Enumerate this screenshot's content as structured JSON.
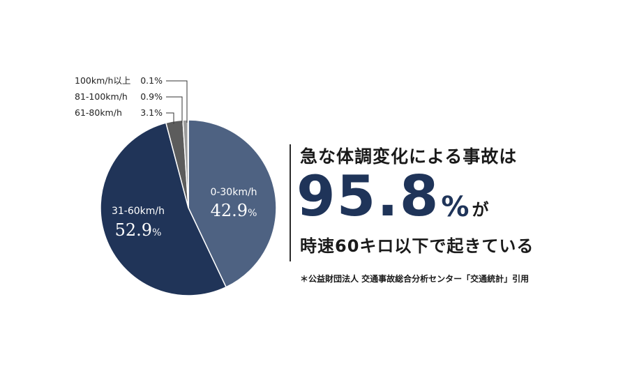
{
  "chart_data": {
    "type": "pie",
    "slices": [
      {
        "label": "0-30km/h",
        "value": 42.9,
        "value_text": "42.9",
        "pct_sign": "%",
        "color": "#4e6282",
        "label_position": "inside"
      },
      {
        "label": "31-60km/h",
        "value": 52.9,
        "value_text": "52.9",
        "pct_sign": "%",
        "color": "#203458",
        "label_position": "inside"
      },
      {
        "label": "61-80km/h",
        "value": 3.1,
        "value_text": "3.1%",
        "color": "#5c5c5c",
        "label_position": "outside"
      },
      {
        "label": "81-100km/h",
        "value": 0.9,
        "value_text": "0.9%",
        "color": "#9a9a9a",
        "label_position": "outside"
      },
      {
        "label": "100km/h以上",
        "value": 0.1,
        "value_text": "0.1%",
        "color": "#d0d0d0",
        "label_position": "outside"
      }
    ],
    "start_angle": "12 o'clock",
    "direction": "clockwise",
    "slice_border_color": "#ffffff"
  },
  "info": {
    "headline": "急な体調変化による事故は",
    "big_number": "95.8",
    "big_unit": "%",
    "big_suffix": "が",
    "subline": "時速60キロ以下で起きている",
    "source": "＊公益財団法人 交通事故総合分析センター「交通統計」引用"
  }
}
